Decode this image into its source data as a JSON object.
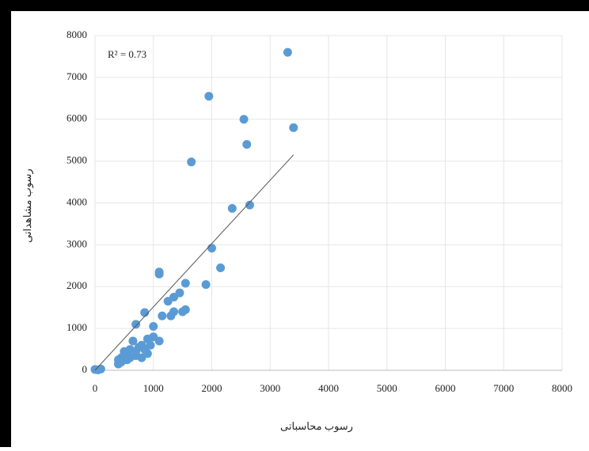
{
  "chart_data": {
    "type": "scatter",
    "annotation": "R² = 0.73",
    "xlabel": "رسوب محاسباتی",
    "ylabel": "رسوب مشاهداتی",
    "color": "#5b9bd5",
    "grid": true,
    "xlim": [
      0,
      8000
    ],
    "xticks": [
      0,
      1000,
      2000,
      3000,
      4000,
      5000,
      6000,
      7000,
      8000
    ],
    "ylim": [
      0,
      8000
    ],
    "yticks": [
      0,
      1000,
      2000,
      3000,
      4000,
      5000,
      6000,
      7000,
      8000
    ],
    "x": [
      3300,
      1950,
      2550,
      3400,
      2600,
      1650,
      2650,
      2350,
      2000,
      1100,
      1100,
      1550,
      1900,
      2150,
      1450,
      1350,
      1250,
      1550,
      1500,
      1350,
      1300,
      1150,
      850,
      700,
      1000,
      1000,
      900,
      1100,
      800,
      750,
      600,
      700,
      550,
      500,
      450,
      400,
      400,
      450,
      600,
      650,
      500,
      550,
      850,
      950,
      0,
      50,
      100,
      800,
      700,
      900
    ],
    "values": [
      7600,
      6550,
      6000,
      5800,
      5400,
      4980,
      3950,
      3870,
      2920,
      2350,
      2300,
      2080,
      2050,
      2450,
      1850,
      1750,
      1650,
      1450,
      1400,
      1400,
      1300,
      1300,
      1380,
      1100,
      1050,
      800,
      750,
      700,
      600,
      550,
      500,
      450,
      400,
      350,
      300,
      250,
      150,
      200,
      300,
      700,
      450,
      250,
      500,
      600,
      20,
      10,
      30,
      300,
      350,
      400
    ],
    "trendline": {
      "x": [
        0,
        3400
      ],
      "values": [
        0,
        5150
      ],
      "color": "#555555"
    }
  }
}
